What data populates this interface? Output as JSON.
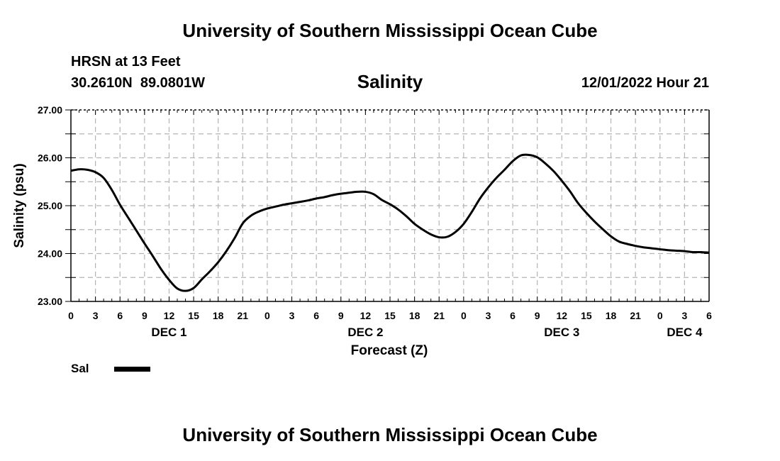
{
  "header": {
    "title": "University of Southern Mississippi Ocean Cube",
    "station": "HRSN at 13 Feet",
    "coords": "30.2610N  89.0801W",
    "timestamp": "12/01/2022 Hour 21"
  },
  "footer": {
    "title": "University of Southern Mississippi Ocean Cube"
  },
  "legend": {
    "label": "Sal",
    "color": "#000000"
  },
  "chart_data": {
    "type": "line",
    "title": "Salinity",
    "xlabel": "Forecast (Z)",
    "ylabel": "Salinity (psu)",
    "ylim": [
      23.0,
      27.0
    ],
    "yticks": [
      "23.00",
      "24.00",
      "25.00",
      "26.00",
      "27.00"
    ],
    "xlim": [
      0,
      78
    ],
    "xtick_labels": [
      "0",
      "3",
      "6",
      "9",
      "12",
      "15",
      "18",
      "21",
      "0",
      "3",
      "6",
      "9",
      "12",
      "15",
      "18",
      "21",
      "0",
      "3",
      "6",
      "9",
      "12",
      "15",
      "18",
      "21",
      "0",
      "3",
      "6"
    ],
    "day_labels": [
      {
        "label": "DEC 1",
        "hour": 12
      },
      {
        "label": "DEC 2",
        "hour": 36
      },
      {
        "label": "DEC 3",
        "hour": 60
      },
      {
        "label": "DEC 4",
        "hour": 75
      }
    ],
    "grid": true,
    "legend_position": "bottom-left",
    "series": [
      {
        "name": "Sal",
        "x": [
          0,
          1,
          2,
          3,
          4,
          5,
          6,
          7,
          8,
          9,
          10,
          11,
          12,
          13,
          14,
          15,
          16,
          17,
          18,
          19,
          20,
          21,
          22,
          23,
          24,
          25,
          26,
          27,
          28,
          29,
          30,
          31,
          32,
          33,
          34,
          35,
          36,
          37,
          38,
          39,
          40,
          41,
          42,
          43,
          44,
          45,
          46,
          47,
          48,
          49,
          50,
          51,
          52,
          53,
          54,
          55,
          56,
          57,
          58,
          59,
          60,
          61,
          62,
          63,
          64,
          65,
          66,
          67,
          68,
          69,
          70,
          71,
          72,
          73,
          74,
          75,
          76,
          77,
          78
        ],
        "values": [
          25.73,
          25.76,
          25.75,
          25.7,
          25.58,
          25.33,
          25.02,
          24.75,
          24.48,
          24.21,
          23.95,
          23.68,
          23.45,
          23.27,
          23.22,
          23.28,
          23.46,
          23.63,
          23.82,
          24.05,
          24.32,
          24.63,
          24.79,
          24.88,
          24.94,
          24.98,
          25.02,
          25.05,
          25.08,
          25.11,
          25.15,
          25.18,
          25.22,
          25.25,
          25.27,
          25.29,
          25.29,
          25.24,
          25.12,
          25.03,
          24.92,
          24.78,
          24.62,
          24.5,
          24.4,
          24.34,
          24.35,
          24.45,
          24.62,
          24.87,
          25.15,
          25.38,
          25.58,
          25.75,
          25.93,
          26.05,
          26.06,
          26.01,
          25.88,
          25.72,
          25.52,
          25.3,
          25.05,
          24.85,
          24.67,
          24.51,
          24.36,
          24.25,
          24.2,
          24.16,
          24.13,
          24.11,
          24.09,
          24.07,
          24.06,
          24.05,
          24.03,
          24.03,
          24.02
        ]
      }
    ]
  }
}
